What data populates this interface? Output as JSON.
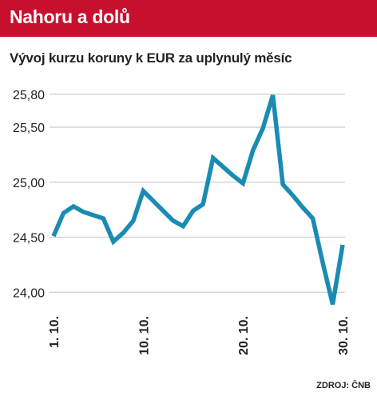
{
  "header": {
    "title": "Nahoru a dolů"
  },
  "colors": {
    "header_bg": "#c8102e",
    "line": "#1a8bb3",
    "grid": "#cccccc"
  },
  "chart_data": {
    "type": "line",
    "title": "Nahoru a dolů",
    "subtitle": "Vývoj kurzu koruny k EUR za uplynulý měsíc",
    "source": "ZDROJ: ČNB",
    "grid": true,
    "ylim": [
      23.9,
      25.82
    ],
    "xlim": [
      1,
      30
    ],
    "y_ticks": [
      {
        "value": 25.8,
        "label": "25,80"
      },
      {
        "value": 25.5,
        "label": "25,50"
      },
      {
        "value": 25.0,
        "label": "25,00"
      },
      {
        "value": 24.5,
        "label": "24,50"
      },
      {
        "value": 24.0,
        "label": "24,00"
      }
    ],
    "x_ticks": [
      {
        "value": 1,
        "label": "1. 10."
      },
      {
        "value": 10,
        "label": "10. 10."
      },
      {
        "value": 20,
        "label": "20. 10."
      },
      {
        "value": 30,
        "label": "30. 10."
      }
    ],
    "series": [
      {
        "x": [
          1,
          2,
          3,
          4,
          5,
          6,
          7,
          8,
          9,
          10,
          11,
          12,
          13,
          14,
          15,
          16,
          17,
          18,
          19,
          20,
          21,
          22,
          23,
          24,
          25,
          26,
          27,
          28,
          29,
          30
        ],
        "values": [
          24.51,
          24.72,
          24.78,
          24.73,
          24.7,
          24.67,
          24.46,
          24.54,
          24.65,
          24.92,
          24.83,
          24.74,
          24.65,
          24.6,
          24.74,
          24.8,
          25.22,
          25.14,
          25.06,
          24.99,
          25.29,
          25.49,
          25.79,
          24.98,
          24.88,
          24.77,
          24.67,
          24.27,
          23.89,
          24.43
        ]
      }
    ]
  }
}
